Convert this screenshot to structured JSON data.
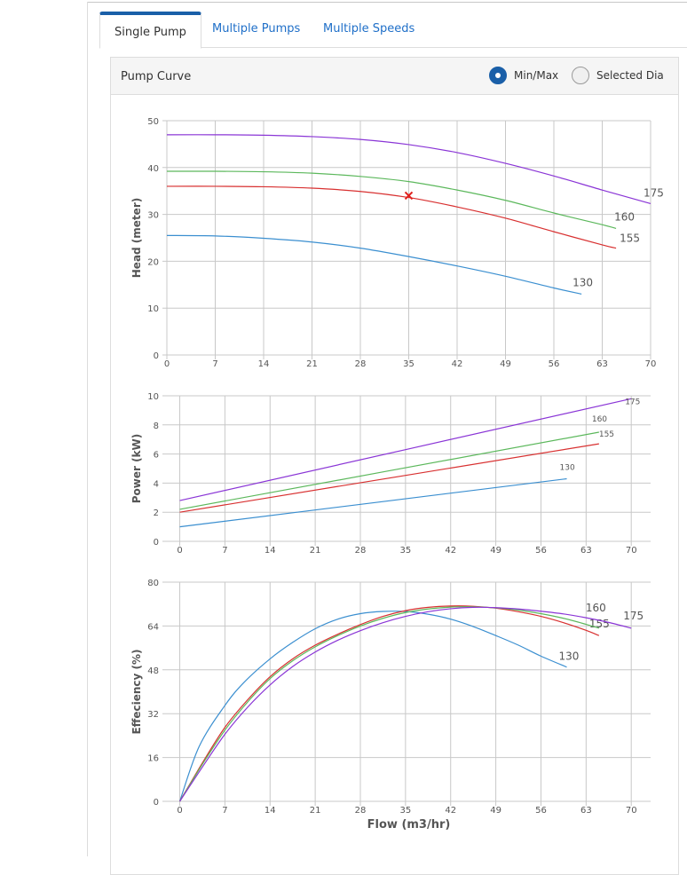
{
  "tabs": [
    {
      "label": "Single Pump",
      "active": true
    },
    {
      "label": "Multiple Pumps",
      "active": false
    },
    {
      "label": "Multiple Speeds",
      "active": false
    }
  ],
  "panel": {
    "title": "Pump Curve",
    "radios": [
      {
        "label": "Min/Max",
        "checked": true
      },
      {
        "label": "Selected Dia",
        "checked": false
      }
    ]
  },
  "colors": {
    "130": "#3b8fd0",
    "155": "#d83030",
    "160": "#5cb85c",
    "175": "#8a35d6",
    "grid": "#c8c8c8",
    "marker": "#e0201d"
  },
  "chart_data": [
    {
      "type": "line",
      "ylabel": "Head (meter)",
      "xlabel": "",
      "xlim": [
        0,
        70
      ],
      "ylim": [
        0,
        50
      ],
      "xticks": [
        0,
        7,
        14,
        21,
        28,
        35,
        42,
        49,
        56,
        63,
        70
      ],
      "yticks": [
        0,
        10,
        20,
        30,
        40,
        50
      ],
      "series": [
        {
          "name": "130",
          "color_key": "130",
          "x": [
            0,
            7,
            14,
            21,
            28,
            35,
            42,
            49,
            56,
            60
          ],
          "y": [
            25.5,
            25.4,
            24.9,
            24.1,
            22.8,
            21.0,
            19.0,
            16.8,
            14.3,
            13.0
          ]
        },
        {
          "name": "155",
          "color_key": "155",
          "x": [
            0,
            7,
            14,
            21,
            28,
            35,
            42,
            49,
            56,
            63,
            65
          ],
          "y": [
            36.0,
            36.0,
            35.9,
            35.6,
            34.9,
            33.6,
            31.6,
            29.2,
            26.3,
            23.5,
            22.8
          ]
        },
        {
          "name": "160",
          "color_key": "160",
          "x": [
            0,
            7,
            14,
            21,
            28,
            35,
            42,
            49,
            56,
            63,
            65
          ],
          "y": [
            39.2,
            39.2,
            39.1,
            38.8,
            38.1,
            37.0,
            35.2,
            33.0,
            30.3,
            27.8,
            27.0
          ]
        },
        {
          "name": "175",
          "color_key": "175",
          "x": [
            0,
            7,
            14,
            21,
            28,
            35,
            42,
            49,
            56,
            63,
            70
          ],
          "y": [
            47.0,
            47.0,
            46.9,
            46.6,
            46.0,
            44.9,
            43.2,
            40.9,
            38.2,
            35.2,
            32.3
          ]
        }
      ],
      "marker": {
        "x": 35,
        "y": 34.0,
        "symbol": "x"
      }
    },
    {
      "type": "line",
      "ylabel": "Power (kW)",
      "xlabel": "",
      "xlim": [
        -2,
        73
      ],
      "ylim": [
        0,
        10
      ],
      "xticks": [
        0,
        7,
        14,
        21,
        28,
        35,
        42,
        49,
        56,
        63,
        70
      ],
      "yticks": [
        0,
        2,
        4,
        6,
        8,
        10
      ],
      "series": [
        {
          "name": "130",
          "color_key": "130",
          "x": [
            0,
            60
          ],
          "y": [
            1.0,
            4.3
          ]
        },
        {
          "name": "155",
          "color_key": "155",
          "x": [
            0,
            65
          ],
          "y": [
            2.0,
            6.7
          ]
        },
        {
          "name": "160",
          "color_key": "160",
          "x": [
            0,
            65
          ],
          "y": [
            2.2,
            7.5
          ]
        },
        {
          "name": "175",
          "color_key": "175",
          "x": [
            0,
            70
          ],
          "y": [
            2.8,
            9.8
          ]
        }
      ]
    },
    {
      "type": "line",
      "ylabel": "Effeciency (%)",
      "xlabel": "Flow (m3/hr)",
      "xlim": [
        -2,
        73
      ],
      "ylim": [
        0,
        80
      ],
      "xticks": [
        0,
        7,
        14,
        21,
        28,
        35,
        42,
        49,
        56,
        63,
        70
      ],
      "yticks": [
        0,
        16,
        32,
        48,
        64,
        80
      ],
      "series": [
        {
          "name": "130",
          "color_key": "130",
          "x": [
            0,
            3,
            7,
            10,
            14,
            17.5,
            21,
            24.5,
            28,
            31.5,
            35,
            38.5,
            42,
            45.5,
            49,
            52.5,
            56,
            60
          ],
          "y": [
            0,
            20,
            35,
            43.5,
            52,
            58,
            63,
            66.5,
            68.5,
            69.3,
            69.3,
            68.3,
            66.5,
            63.8,
            60.5,
            57,
            53,
            49
          ]
        },
        {
          "name": "155",
          "color_key": "155",
          "x": [
            0,
            3.5,
            7,
            10.5,
            14,
            17.5,
            21,
            24.5,
            28,
            31.5,
            35,
            38.5,
            42,
            45.5,
            49,
            52.5,
            56,
            59.5,
            63,
            65
          ],
          "y": [
            0,
            14,
            27,
            37,
            45.5,
            52,
            57,
            61,
            64.5,
            67.5,
            69.6,
            70.8,
            71.3,
            71.2,
            70.5,
            69.2,
            67.5,
            65.2,
            62.4,
            60.5
          ]
        },
        {
          "name": "160",
          "color_key": "160",
          "x": [
            0,
            3.5,
            7,
            10.5,
            14,
            17.5,
            21,
            24.5,
            28,
            31.5,
            35,
            38.5,
            42,
            45.5,
            49,
            52.5,
            56,
            59.5,
            63,
            65
          ],
          "y": [
            0,
            13.5,
            26,
            36.2,
            44.8,
            51.3,
            56.4,
            60.5,
            64,
            66.8,
            68.9,
            70.2,
            70.9,
            71.0,
            70.6,
            69.8,
            68.5,
            66.8,
            64.6,
            63.2
          ]
        },
        {
          "name": "175",
          "color_key": "175",
          "x": [
            0,
            3.5,
            7,
            10.5,
            14,
            17.5,
            21,
            24.5,
            28,
            31.5,
            35,
            38.5,
            42,
            45.5,
            49,
            52.5,
            56,
            59.5,
            63,
            66.5,
            70
          ],
          "y": [
            0,
            12.5,
            24.5,
            34.3,
            42.5,
            49.2,
            54.5,
            58.8,
            62.3,
            65.2,
            67.5,
            69.2,
            70.3,
            70.8,
            70.7,
            70.2,
            69.4,
            68.4,
            67,
            65.3,
            63.2
          ]
        }
      ]
    }
  ]
}
